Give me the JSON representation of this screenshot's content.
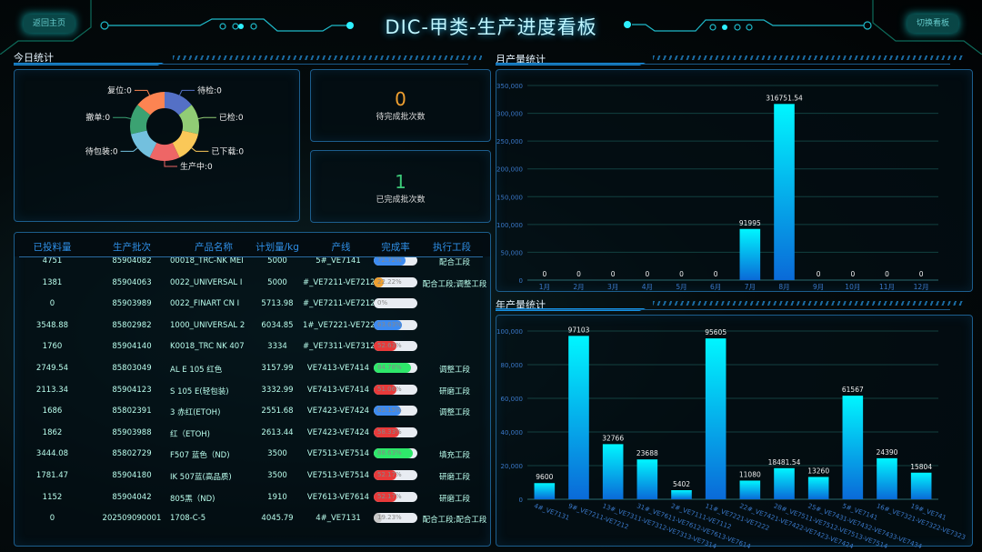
{
  "header": {
    "title": "DIC-甲类-生产进度看板",
    "back_button": "返回主页",
    "switch_button": "切换看板"
  },
  "today": {
    "title": "今日统计",
    "donut": [
      {
        "label": "待检",
        "value": 0,
        "color": "#5470c6"
      },
      {
        "label": "已检",
        "value": 0,
        "color": "#91cc75"
      },
      {
        "label": "已下载",
        "value": 0,
        "color": "#fac858"
      },
      {
        "label": "生产中",
        "value": 0,
        "color": "#ee6666"
      },
      {
        "label": "待包装",
        "value": 0,
        "color": "#73c0de"
      },
      {
        "label": "撤单",
        "value": 0,
        "color": "#3ba272"
      },
      {
        "label": "复位",
        "value": 0,
        "color": "#fc8452"
      }
    ],
    "pending": {
      "value": "0",
      "label": "待完成批次数",
      "color": "#f0a030"
    },
    "done": {
      "value": "1",
      "label": "已完成批次数",
      "color": "#3cc878"
    }
  },
  "table": {
    "headers": [
      "已投料量",
      "生产批次",
      "产品名称",
      "计划量/kg",
      "产线",
      "完成率",
      "执行工段"
    ],
    "rows": [
      [
        "4751",
        "85904082",
        "00018_TRC-NK MEI",
        "5000",
        "5#_VE7141",
        "72.72%",
        "配合工段",
        "#3d8bf0"
      ],
      [
        "1381",
        "85904063",
        "0022_UNIVERSAL I",
        "5000",
        "#_VE7211-VE7212",
        "22.22%",
        "配合工段;调整工段",
        "#f0a030"
      ],
      [
        "0",
        "85903989",
        "0022_FINART CN I",
        "5713.98",
        "#_VE7211-VE7212",
        "0%",
        "",
        "#cccccc"
      ],
      [
        "3548.88",
        "85802982",
        "1000_UNIVERSAL 2",
        "6034.85",
        "1#_VE7221-VE7222",
        "63.63%",
        "",
        "#3d8bf0"
      ],
      [
        "1760",
        "85904140",
        "K0018_TRC NK 407",
        "3334",
        "#_VE7311-VE7312-",
        "52.63%",
        "",
        "#e83a3a"
      ],
      [
        "2749.54",
        "85803049",
        "AL E 105 红色",
        "3157.99",
        "VE7413-VE7414",
        "84.78%",
        "调整工段",
        "#2ee86a"
      ],
      [
        "2113.34",
        "85904123",
        "S 105 E(轻包装)",
        "3332.99",
        "VE7413-VE7414",
        "51.06%",
        "研磨工段",
        "#e83a3a"
      ],
      [
        "1686",
        "85802391",
        "3 赤红(ETOH)",
        "2551.68",
        "VE7423-VE7424",
        "63.15%",
        "调整工段",
        "#3d8bf0"
      ],
      [
        "1862",
        "85903988",
        "红（ETOH)",
        "2613.44",
        "VE7423-VE7424",
        "58.33%",
        "",
        "#e83a3a"
      ],
      [
        "3444.08",
        "85802729",
        "F507 蓝色（ND)",
        "3500",
        "VE7513-VE7514",
        "88.63%",
        "填充工段",
        "#2ee86a"
      ],
      [
        "1781.47",
        "85904180",
        "IK 507蓝(高品质)",
        "3500",
        "VE7513-VE7514",
        "52.17%",
        "研磨工段",
        "#e83a3a"
      ],
      [
        "1152",
        "85904042",
        "805黑（ND)",
        "1910",
        "VE7613-VE7614",
        "52.17%",
        "研磨工段",
        "#e83a3a"
      ],
      [
        "0",
        "202509090001",
        "1708-C-5",
        "4045.79",
        "4#_VE7131",
        "19.23%",
        "配合工段;配合工段",
        "#c8c8c8"
      ]
    ]
  },
  "chart_data": [
    {
      "type": "bar",
      "title": "月产量统计",
      "categories": [
        "1月",
        "2月",
        "3月",
        "4月",
        "5月",
        "6月",
        "7月",
        "8月",
        "9月",
        "10月",
        "11月",
        "12月"
      ],
      "values": [
        0,
        0,
        0,
        0,
        0,
        0,
        91995,
        316751.54,
        0,
        0,
        0,
        0
      ],
      "ylim": [
        0,
        350000
      ],
      "yticks": [
        "0",
        "50,000",
        "100,000",
        "150,000",
        "200,000",
        "250,000",
        "300,000",
        "350,000"
      ],
      "grid": true,
      "data_labels": true
    },
    {
      "type": "bar",
      "title": "年产量统计",
      "categories": [
        "4#_VE7131",
        "9#_VE7211-VE7212",
        "13#_VE7311-VE7312-VE7313-VE7314",
        "31#_VE7611-VE7612-VE7613-VE7614",
        "2#_VE7111-VE7112",
        "11#_VE7221-VE7222",
        "22#_VE7421-VE7422-VE7423-VE7424",
        "28#_VE7511-VE7512-VE7513-VE7514",
        "25#_VE7431-VE7432-VE7433-VE7434",
        "5#_VE7141",
        "16#_VE7321-VE7322-VE7323",
        "19#_VE741"
      ],
      "values": [
        9600,
        97103,
        32766,
        23688,
        5402,
        95605,
        11080,
        18481.54,
        13260,
        61567,
        24390,
        15804
      ],
      "ylim": [
        0,
        100000
      ],
      "yticks": [
        "0",
        "20,000",
        "40,000",
        "60,000",
        "80,000",
        "100,000"
      ],
      "grid": true,
      "data_labels": true
    }
  ]
}
